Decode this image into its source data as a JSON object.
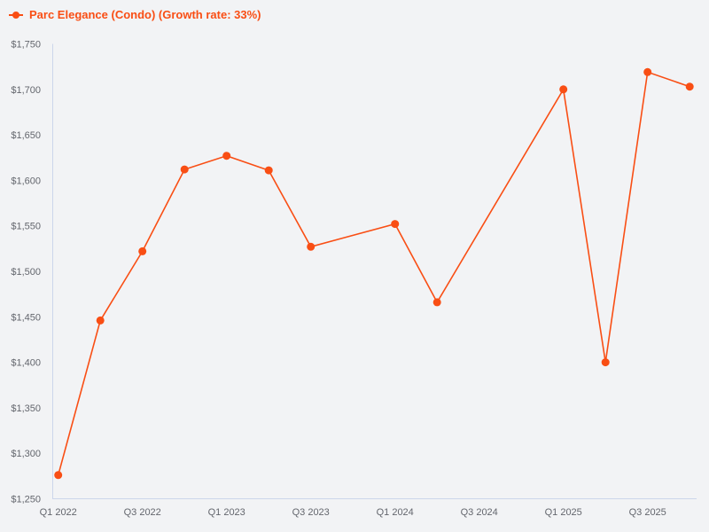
{
  "legend": {
    "label": "Parc Elegance (Condo) (Growth rate: 33%)"
  },
  "colors": {
    "background": "#f2f3f5",
    "series": "#f94e14",
    "axis_line": "#ccd6eb",
    "tick_label": "#63666d"
  },
  "chart_data": {
    "type": "line",
    "title": "",
    "xlabel": "",
    "ylabel": "",
    "categories": [
      "Q1 2022",
      "Q2 2022",
      "Q3 2022",
      "Q4 2022",
      "Q1 2023",
      "Q2 2023",
      "Q3 2023",
      "Q4 2023",
      "Q1 2024",
      "Q2 2024",
      "Q3 2024",
      "Q4 2024",
      "Q1 2025",
      "Q2 2025",
      "Q3 2025",
      "Q4 2025"
    ],
    "series": [
      {
        "name": "Parc Elegance (Condo) (Growth rate: 33%)",
        "growth_rate": "33%",
        "values": [
          1276,
          1446,
          1522,
          1612,
          1627,
          1611,
          1527,
          null,
          1552,
          1466,
          null,
          null,
          1700,
          1400,
          1719,
          1703
        ]
      }
    ],
    "x_tick_labels": [
      "Q1 2022",
      "Q3 2022",
      "Q1 2023",
      "Q3 2023",
      "Q1 2024",
      "Q3 2024",
      "Q1 2025",
      "Q3 2025"
    ],
    "y_ticks": [
      1250,
      1300,
      1350,
      1400,
      1450,
      1500,
      1550,
      1600,
      1650,
      1700,
      1750
    ],
    "y_tick_labels": [
      "$1,250",
      "$1,300",
      "$1,350",
      "$1,400",
      "$1,450",
      "$1,500",
      "$1,550",
      "$1,600",
      "$1,650",
      "$1,700",
      "$1,750"
    ],
    "ylim": [
      1250,
      1750
    ],
    "grid": false,
    "legend_position": "top-left",
    "marker": "circle"
  }
}
